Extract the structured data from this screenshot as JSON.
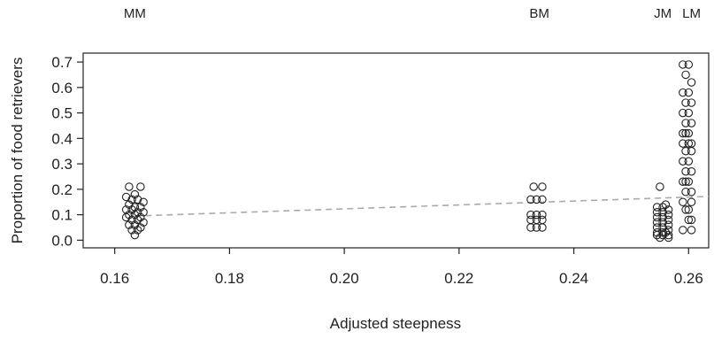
{
  "chart_data": {
    "type": "scatter",
    "title": "",
    "xlabel": "Adjusted steepness",
    "ylabel": "Proportion of food retrievers",
    "xlim": [
      0.1545,
      0.2635
    ],
    "ylim": [
      -0.03,
      0.735
    ],
    "x_ticks": [
      "0.16",
      "0.18",
      "0.20",
      "0.22",
      "0.24",
      "0.26"
    ],
    "y_ticks": [
      "0.0",
      "0.1",
      "0.2",
      "0.3",
      "0.4",
      "0.5",
      "0.6",
      "0.7"
    ],
    "grid": false,
    "group_labels": [
      {
        "label": "MM",
        "x": 0.1635
      },
      {
        "label": "BM",
        "x": 0.234
      },
      {
        "label": "JM",
        "x": 0.2555
      },
      {
        "label": "LM",
        "x": 0.2605
      }
    ],
    "trend_line": {
      "style": "dashed",
      "color": "#aaaaaa",
      "x": [
        0.1635,
        0.2635
      ],
      "y": [
        0.095,
        0.172
      ]
    },
    "series": [
      {
        "x": [
          0.1625,
          0.1645,
          0.1635,
          0.162,
          0.163,
          0.164,
          0.165,
          0.1625,
          0.1635,
          0.1645,
          0.162,
          0.163,
          0.164,
          0.165,
          0.1625,
          0.1635,
          0.1645,
          0.162,
          0.163,
          0.164,
          0.165,
          0.1625,
          0.1635,
          0.1645,
          0.163,
          0.164,
          0.1635,
          0.233,
          0.2345,
          0.2325,
          0.2335,
          0.2345,
          0.2325,
          0.2335,
          0.2345,
          0.2325,
          0.2335,
          0.2345,
          0.2325,
          0.2335,
          0.2345,
          0.255,
          0.256,
          0.2545,
          0.2555,
          0.2565,
          0.2545,
          0.2555,
          0.2565,
          0.2545,
          0.2555,
          0.2565,
          0.2545,
          0.2555,
          0.2565,
          0.2545,
          0.2555,
          0.2565,
          0.2545,
          0.2555,
          0.2565,
          0.2545,
          0.2555,
          0.2565,
          0.255,
          0.256,
          0.259,
          0.26,
          0.2595,
          0.2605,
          0.259,
          0.26,
          0.2595,
          0.2605,
          0.259,
          0.26,
          0.2595,
          0.2605,
          0.259,
          0.26,
          0.2595,
          0.2605,
          0.259,
          0.26,
          0.2595,
          0.2605,
          0.259,
          0.26,
          0.2595,
          0.2605,
          0.259,
          0.26,
          0.2595,
          0.2605,
          0.259,
          0.26,
          0.2595,
          0.2605,
          0.26,
          0.259,
          0.2605,
          0.2595,
          0.2605
        ],
        "y": [
          0.21,
          0.21,
          0.18,
          0.17,
          0.16,
          0.16,
          0.15,
          0.14,
          0.13,
          0.13,
          0.12,
          0.12,
          0.11,
          0.11,
          0.1,
          0.1,
          0.09,
          0.09,
          0.08,
          0.08,
          0.07,
          0.06,
          0.06,
          0.05,
          0.04,
          0.04,
          0.02,
          0.21,
          0.21,
          0.16,
          0.16,
          0.16,
          0.1,
          0.1,
          0.1,
          0.08,
          0.08,
          0.08,
          0.05,
          0.05,
          0.05,
          0.21,
          0.14,
          0.13,
          0.13,
          0.12,
          0.11,
          0.11,
          0.1,
          0.09,
          0.09,
          0.08,
          0.07,
          0.07,
          0.06,
          0.05,
          0.05,
          0.04,
          0.03,
          0.03,
          0.02,
          0.02,
          0.02,
          0.01,
          0.01,
          0.03,
          0.69,
          0.69,
          0.65,
          0.62,
          0.58,
          0.58,
          0.54,
          0.54,
          0.5,
          0.5,
          0.46,
          0.46,
          0.42,
          0.42,
          0.42,
          0.38,
          0.38,
          0.38,
          0.35,
          0.35,
          0.31,
          0.31,
          0.27,
          0.27,
          0.23,
          0.23,
          0.19,
          0.15,
          0.15,
          0.12,
          0.12,
          0.08,
          0.08,
          0.04,
          0.04,
          0.23,
          0.19
        ]
      }
    ]
  }
}
